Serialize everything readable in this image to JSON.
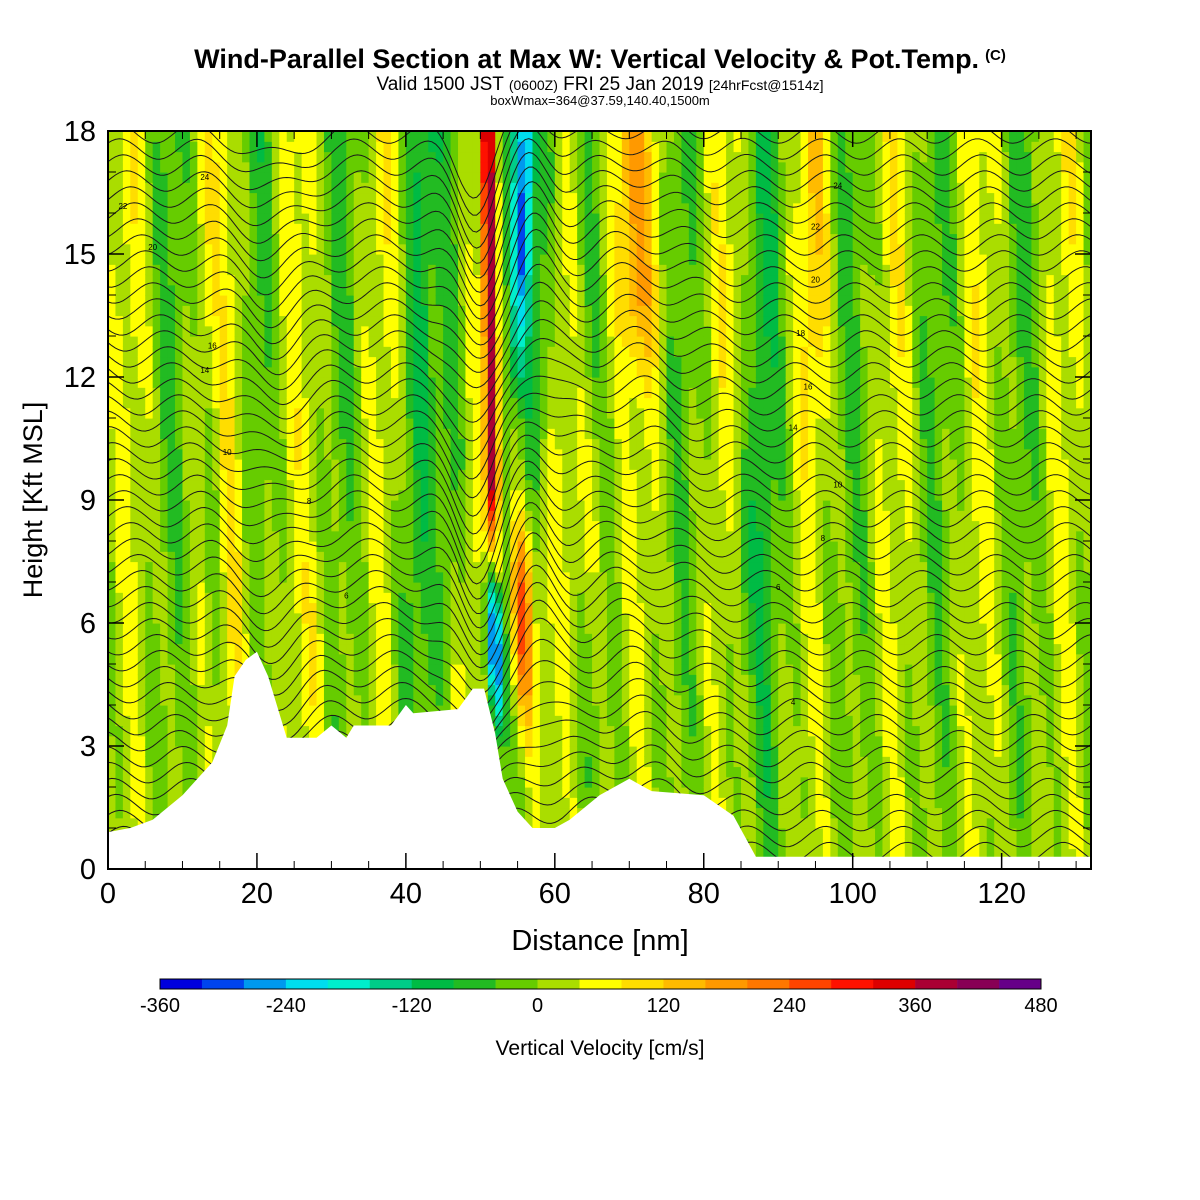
{
  "title": {
    "main": "Wind-Parallel Section at Max W: Vertical Velocity & Pot.Temp.",
    "copyright": "(C)",
    "valid_prefix": "Valid 1500 JST",
    "valid_utc": "(0600Z)",
    "valid_date": "FRI 25 Jan 2019",
    "forecast": "[24hrFcst@1514z]",
    "boxinfo": "boxWmax=364@37.59,140.40,1500m"
  },
  "chart_data": {
    "type": "heatmap",
    "xlabel": "Distance [nm]",
    "ylabel": "Height [Kft MSL]",
    "xlim": [
      0,
      132
    ],
    "ylim": [
      0,
      18
    ],
    "x_ticks": [
      "0",
      "20",
      "40",
      "60",
      "80",
      "100",
      "120"
    ],
    "y_ticks": [
      "0",
      "3",
      "6",
      "9",
      "12",
      "15",
      "18"
    ],
    "colorbar": {
      "label": "Vertical Velocity [cm/s]",
      "tick_labels": [
        "-360",
        "-240",
        "-120",
        "0",
        "120",
        "240",
        "360",
        "480"
      ],
      "levels": [
        -360,
        -320,
        -280,
        -240,
        -200,
        -160,
        -120,
        -80,
        -40,
        0,
        40,
        80,
        120,
        160,
        200,
        240,
        280,
        320,
        360,
        400,
        440,
        480
      ],
      "colors": [
        "#0000dd",
        "#0044ee",
        "#0099ee",
        "#00ddee",
        "#00eecc",
        "#00cc88",
        "#00bb44",
        "#22bb22",
        "#66cc00",
        "#aadd00",
        "#ffff00",
        "#ffdd00",
        "#ffbb00",
        "#ff9900",
        "#ff7700",
        "#ff4400",
        "#ff1100",
        "#dd0000",
        "#aa0033",
        "#880055",
        "#660088"
      ]
    },
    "terrain_kft": [
      [
        0,
        0.9
      ],
      [
        3,
        1.0
      ],
      [
        6,
        1.2
      ],
      [
        8,
        1.5
      ],
      [
        10,
        1.8
      ],
      [
        12,
        2.2
      ],
      [
        14,
        2.6
      ],
      [
        16,
        3.5
      ],
      [
        17,
        4.7
      ],
      [
        18.5,
        5.1
      ],
      [
        20,
        5.3
      ],
      [
        21.5,
        4.7
      ],
      [
        23,
        3.8
      ],
      [
        24,
        3.2
      ],
      [
        28,
        3.2
      ],
      [
        30,
        3.5
      ],
      [
        32,
        3.2
      ],
      [
        33,
        3.5
      ],
      [
        38,
        3.5
      ],
      [
        40,
        4.0
      ],
      [
        41,
        3.8
      ],
      [
        47,
        3.9
      ],
      [
        49,
        4.4
      ],
      [
        50.5,
        4.4
      ],
      [
        52,
        3.3
      ],
      [
        53,
        2.2
      ],
      [
        55,
        1.4
      ],
      [
        57,
        1.0
      ],
      [
        60,
        1.0
      ],
      [
        62,
        1.2
      ],
      [
        66,
        1.8
      ],
      [
        70,
        2.2
      ],
      [
        73,
        1.9
      ],
      [
        80,
        1.8
      ],
      [
        84,
        1.3
      ],
      [
        87,
        0.3
      ],
      [
        132,
        0.3
      ]
    ],
    "features": [
      {
        "name": "updraft core",
        "x": 51,
        "w_cm_s": 364
      },
      {
        "name": "downdraft core",
        "x": 52,
        "w_cm_s": -350
      }
    ],
    "theta_contour_labels": [
      "4",
      "6",
      "8",
      "10",
      "12",
      "14",
      "16",
      "18",
      "20",
      "22",
      "24"
    ]
  }
}
